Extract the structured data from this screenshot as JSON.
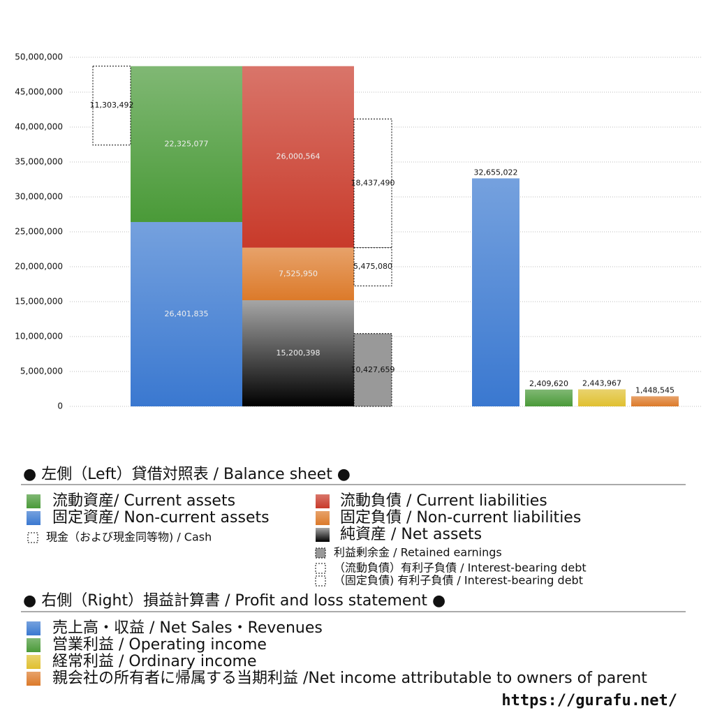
{
  "chart_data": [
    {
      "type": "balance-sheet",
      "legend_title": "● 左側（Left）貸借対照表 / Balance sheet ●",
      "ylim": [
        0,
        50000000
      ],
      "yticks": [
        0,
        {
          "value": 5000000,
          "label": "5,000,000"
        },
        {
          "value": 10000000,
          "label": "10,000,000"
        },
        {
          "value": 15000000,
          "label": "15,000,000"
        },
        {
          "value": 20000000,
          "label": "20,000,000"
        },
        {
          "value": 25000000,
          "label": "25,000,000"
        },
        {
          "value": 30000000,
          "label": "30,000,000"
        },
        {
          "value": 35000000,
          "label": "35,000,000"
        },
        {
          "value": 40000000,
          "label": "40,000,000"
        },
        {
          "value": 45000000,
          "label": "45,000,000"
        },
        {
          "value": 50000000,
          "label": "50,000,000"
        }
      ],
      "grid": true,
      "series": [
        {
          "name": "流動資産/ Current assets",
          "color": "#4a9a38",
          "stack": "assets",
          "values": [
            22325077
          ],
          "value_labels": [
            "22,325,077"
          ]
        },
        {
          "name": "固定資産/ Non-current assets",
          "color": "#3a78d0",
          "stack": "assets",
          "values": [
            26401835
          ],
          "value_labels": [
            "26,401,835"
          ]
        },
        {
          "name": "現金（および現金同等物) / Cash",
          "stack": "cash",
          "values": [
            11303492
          ],
          "value_labels": [
            "11,303,492"
          ]
        },
        {
          "name": "流動負債 /  Current liabilities",
          "color": "#c83a2a",
          "stack": "liabilities",
          "values": [
            26000564
          ],
          "value_labels": [
            "26,000,564"
          ]
        },
        {
          "name": "固定負債 / Non-current liabilities",
          "color": "#dc7a2a",
          "stack": "liabilities",
          "values": [
            7525950
          ],
          "value_labels": [
            "7,525,950"
          ]
        },
        {
          "name": "純資産 / Net assets",
          "color": "#000000",
          "stack": "liabilities",
          "values": [
            15200398
          ],
          "value_labels": [
            "15,200,398"
          ]
        },
        {
          "name": "利益剰余金 / Retained earnings",
          "color": "#999999",
          "stack": "retained",
          "values": [
            10427659
          ],
          "value_labels": [
            "10,427,659"
          ]
        },
        {
          "name": "（流動負債）有利子負債 / Interest-bearing debt",
          "stack": "debt",
          "values": [
            18437490
          ],
          "value_labels": [
            "18,437,490"
          ]
        },
        {
          "name": "（固定負債) 有利子負債 / Interest-bearing debt",
          "stack": "debt",
          "values": [
            5475080
          ],
          "value_labels": [
            "5,475,080"
          ]
        }
      ]
    },
    {
      "type": "bar",
      "legend_title": "● 右側（Right）損益計算書 / Profit and loss statement ●",
      "series": [
        {
          "name": "売上高・収益 / Net Sales・Revenues",
          "color": "#3a78d0",
          "values": [
            32655022
          ],
          "value_labels": [
            "32,655,022"
          ]
        },
        {
          "name": "営業利益 / Operating income",
          "color": "#4a9a38",
          "values": [
            2409620
          ],
          "value_labels": [
            "2,409,620"
          ]
        },
        {
          "name": "経常利益 / Ordinary income",
          "color": "#e0c030",
          "values": [
            2443967
          ],
          "value_labels": [
            "2,443,967"
          ]
        },
        {
          "name": "親会社の所有者に帰属する当期利益 /Net income attributable to owners of parent",
          "color": "#dc7a2a",
          "values": [
            1448545
          ],
          "value_labels": [
            "1,448,545"
          ]
        }
      ]
    }
  ],
  "footer": "https://gurafu.net/"
}
